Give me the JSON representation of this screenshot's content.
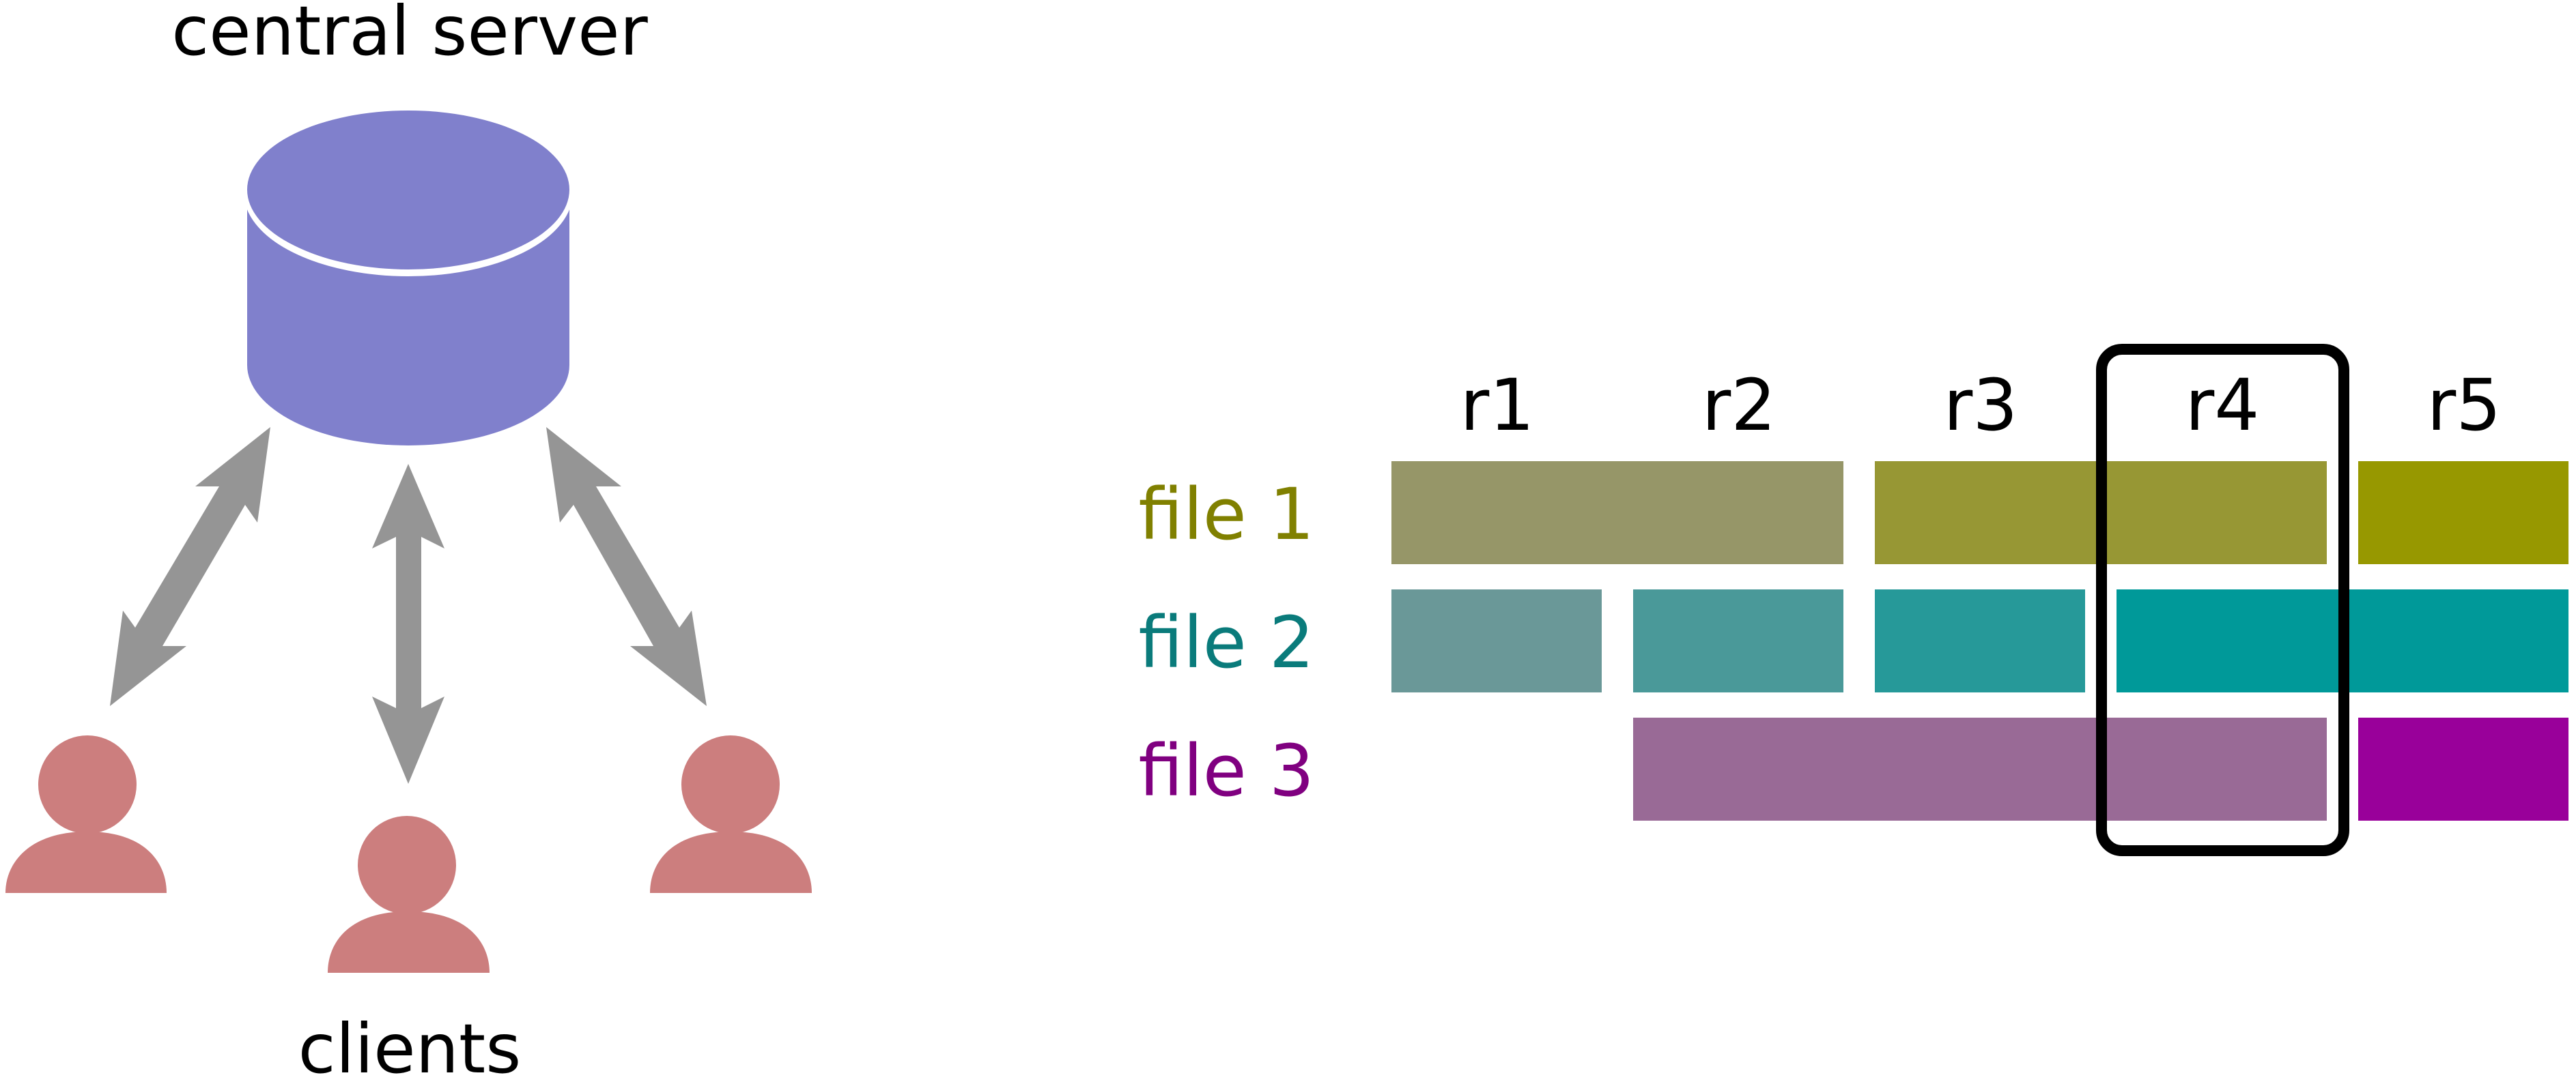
{
  "server": {
    "label": "central server",
    "icon": "database-cylinder-icon",
    "color": "#8080cc"
  },
  "clients": {
    "label": "clients",
    "icon": "person-icon",
    "color": "#cc7e7e",
    "count": 3
  },
  "arrow_color": "#959595",
  "revisions": [
    "r1",
    "r2",
    "r3",
    "r4",
    "r5"
  ],
  "highlighted_revision": "r4",
  "files": [
    {
      "label": "file 1",
      "color": "#808000",
      "segments": [
        {
          "revisions": [
            "r1",
            "r2"
          ],
          "color": "#969668"
        },
        {
          "revisions": [
            "r3",
            "r4"
          ],
          "color": "#979734"
        },
        {
          "revisions": [
            "r5"
          ],
          "color": "#979800"
        }
      ]
    },
    {
      "label": "file 2",
      "color": "#0a7b7b",
      "segments": [
        {
          "revisions": [
            "r1"
          ],
          "color": "#6a9898"
        },
        {
          "revisions": [
            "r2"
          ],
          "color": "#4a9999"
        },
        {
          "revisions": [
            "r3"
          ],
          "color": "#269999"
        },
        {
          "revisions": [
            "r4",
            "r5"
          ],
          "color": "#009999"
        }
      ]
    },
    {
      "label": "file 3",
      "color": "#800080",
      "segments": [
        {
          "revisions": [
            "r2",
            "r3",
            "r4"
          ],
          "color": "#996a96"
        },
        {
          "revisions": [
            "r5"
          ],
          "color": "#99009a"
        }
      ]
    }
  ]
}
